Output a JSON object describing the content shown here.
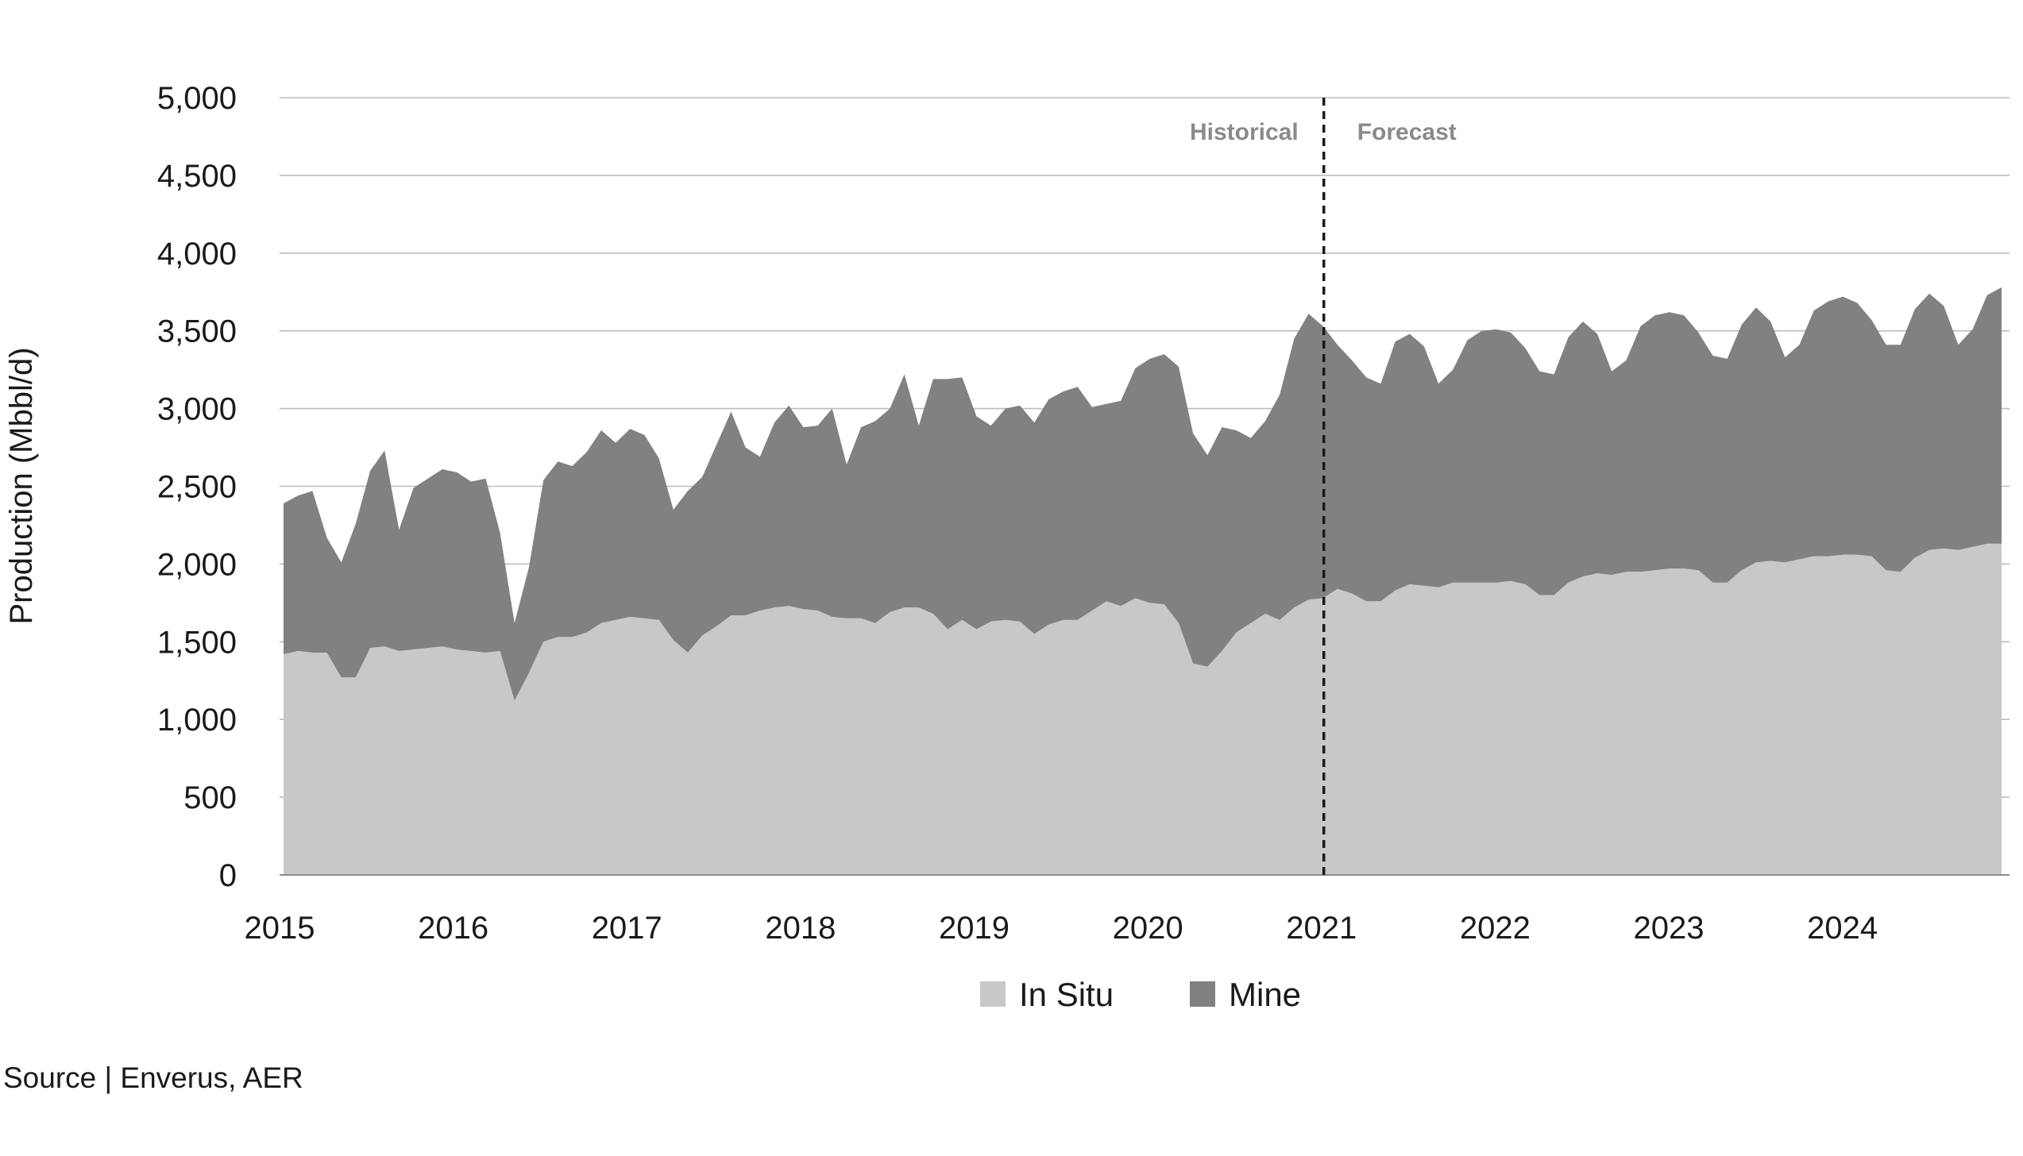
{
  "chart_data": {
    "type": "area",
    "stacked": true,
    "ylabel": "Production (Mbbl/d)",
    "ylim": [
      0,
      5000
    ],
    "yticks": [
      "0",
      "500",
      "1,000",
      "1,500",
      "2,000",
      "2,500",
      "3,000",
      "3,500",
      "4,000",
      "4,500",
      "5,000"
    ],
    "xticks": [
      "2015",
      "2016",
      "2017",
      "2018",
      "2019",
      "2020",
      "2021",
      "2022",
      "2023",
      "2024"
    ],
    "xlim": [
      "2015-01",
      "2024-12"
    ],
    "grid": true,
    "legend_position": "bottom-center",
    "divider_date": "2021-01",
    "period_labels": {
      "left": "Historical",
      "right": "Forecast"
    },
    "colors": {
      "In Situ": "#c8c8ca",
      "Mine": "#818184",
      "grid": "#bdbdbd",
      "axis": "#8c8c8c"
    },
    "series": [
      {
        "name": "In Situ",
        "values": [
          1420,
          1440,
          1430,
          1430,
          1270,
          1270,
          1460,
          1470,
          1440,
          1450,
          1460,
          1470,
          1450,
          1440,
          1430,
          1440,
          1120,
          1300,
          1500,
          1530,
          1530,
          1560,
          1620,
          1640,
          1660,
          1650,
          1640,
          1510,
          1430,
          1540,
          1600,
          1670,
          1670,
          1700,
          1720,
          1730,
          1710,
          1700,
          1660,
          1650,
          1650,
          1620,
          1690,
          1720,
          1720,
          1680,
          1580,
          1640,
          1580,
          1630,
          1640,
          1630,
          1550,
          1610,
          1640,
          1640,
          1700,
          1760,
          1730,
          1780,
          1750,
          1740,
          1620,
          1360,
          1340,
          1440,
          1560,
          1620,
          1680,
          1640,
          1720,
          1770,
          1780,
          1840,
          1810,
          1760,
          1760,
          1830,
          1870,
          1860,
          1850,
          1880,
          1880,
          1880,
          1880,
          1890,
          1870,
          1800,
          1800,
          1880,
          1920,
          1940,
          1930,
          1950,
          1950,
          1960,
          1970,
          1970,
          1960,
          1880,
          1880,
          1960,
          2010,
          2020,
          2010,
          2030,
          2050,
          2050,
          2060,
          2060,
          2050,
          1960,
          1950,
          2040,
          2090,
          2100,
          2090,
          2110,
          2130,
          2130
        ]
      },
      {
        "name": "Mine",
        "values": [
          970,
          1000,
          1040,
          740,
          740,
          990,
          1140,
          1260,
          780,
          1040,
          1090,
          1140,
          1140,
          1090,
          1120,
          760,
          500,
          680,
          1040,
          1130,
          1100,
          1160,
          1240,
          1140,
          1210,
          1180,
          1040,
          840,
          1040,
          1020,
          1170,
          1310,
          1080,
          990,
          1190,
          1290,
          1170,
          1190,
          1340,
          990,
          1230,
          1300,
          1310,
          1500,
          1170,
          1510,
          1610,
          1560,
          1370,
          1260,
          1360,
          1390,
          1360,
          1450,
          1470,
          1500,
          1310,
          1270,
          1320,
          1480,
          1570,
          1610,
          1650,
          1480,
          1360,
          1440,
          1300,
          1190,
          1240,
          1450,
          1730,
          1840,
          1750,
          1570,
          1500,
          1440,
          1400,
          1600,
          1610,
          1540,
          1310,
          1370,
          1560,
          1620,
          1630,
          1600,
          1520,
          1440,
          1420,
          1580,
          1640,
          1540,
          1310,
          1360,
          1580,
          1640,
          1650,
          1630,
          1530,
          1460,
          1440,
          1580,
          1640,
          1540,
          1320,
          1380,
          1580,
          1640,
          1660,
          1620,
          1520,
          1450,
          1460,
          1600,
          1650,
          1560,
          1320,
          1400,
          1600,
          1650
        ]
      }
    ]
  },
  "source": "Source | Enverus, AER"
}
